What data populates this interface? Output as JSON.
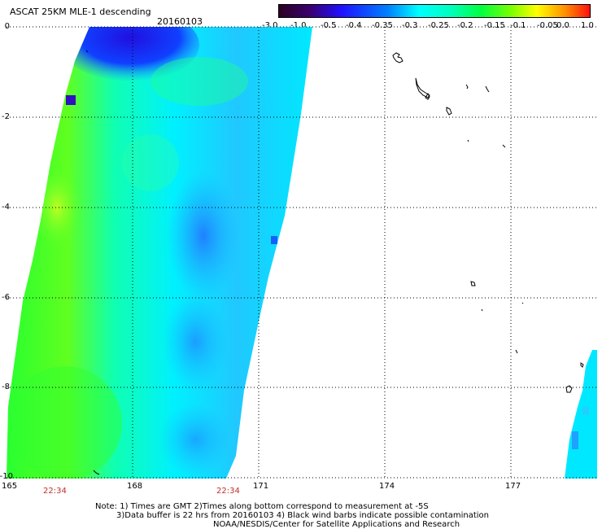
{
  "header": {
    "title": "ASCAT 25KM MLE-1 descending",
    "date": "20160103"
  },
  "colorbar": {
    "ticks": [
      "-3.0",
      "-1.0",
      "-0.5",
      "-0.4",
      "-0.35",
      "-0.3",
      "-0.25",
      "-0.2",
      "-0.15",
      "-0.1",
      "-0.05",
      "0.0",
      "1.0"
    ]
  },
  "axes": {
    "y_labels": [
      "0",
      "-2",
      "-4",
      "-6",
      "-8",
      "-10"
    ],
    "x_labels": [
      "165",
      "168",
      "171",
      "174",
      "177"
    ]
  },
  "times": [
    "22:34",
    "22:34"
  ],
  "notes": {
    "line1": "Note: 1) Times are GMT 2)Times along bottom correspond to measurement at -5S",
    "line2": "3)Data buffer is 22 hrs from 20160103 4) Black wind barbs indicate possible contamination",
    "line3": "NOAA/NESDIS/Center for Satellite Applications and Research"
  }
}
